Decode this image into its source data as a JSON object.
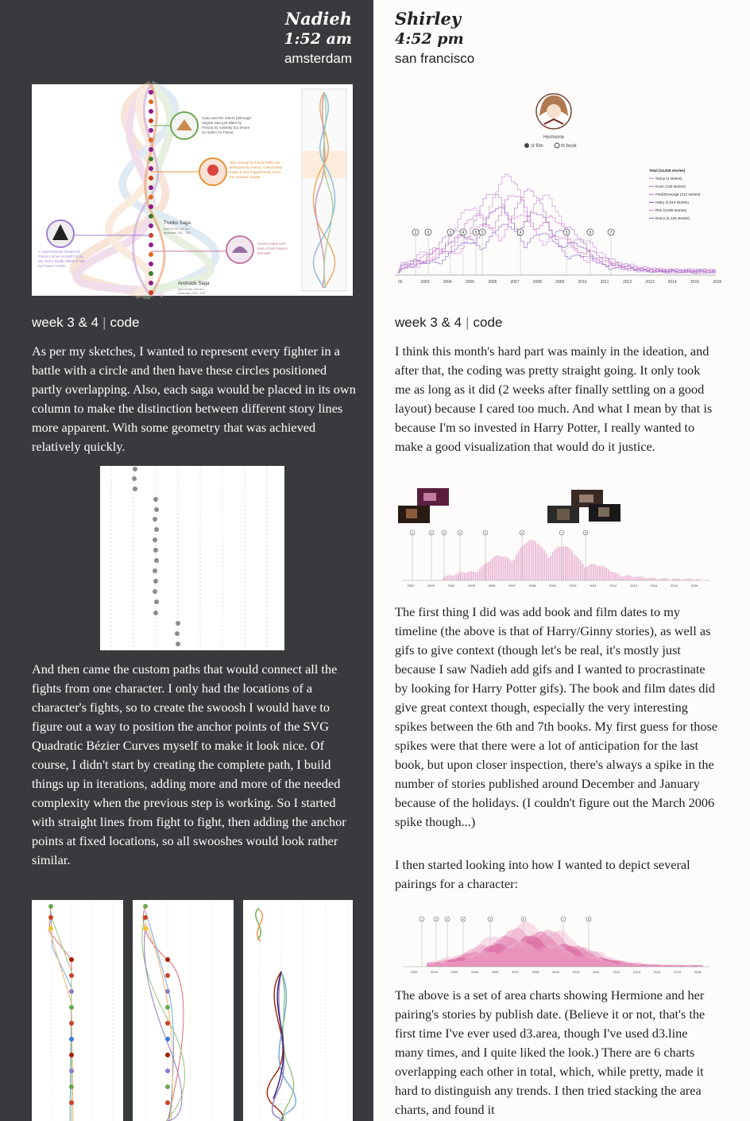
{
  "left": {
    "author": "Nadieh",
    "time": "1:52 am",
    "city": "amsterdam",
    "week_label": "week 3 & 4",
    "separator": "|",
    "code_label": "code",
    "figure1": {
      "annotation_goku": [
        "Goku and the others (although",
        "Vegeta was just killed by",
        "Frieza) try valiantly but theyre",
        "no match for Frieza"
      ],
      "annotation_trunks": [
        "After seeing his friend Krillin get",
        "destroyed by Frieza, Goku finally",
        "snaps & and magnificently turns",
        "into a Super Saiyan"
      ],
      "annotation_android": [
        "A cyberneticaly enhanced",
        "Frieza comes to Earth to try",
        "yet, but is swiftly killed in half",
        "by Future Trunks"
      ],
      "annotation_trunks2": [
        "Trunks steps with",
        "help of last Saiya's",
        "strength"
      ],
      "saga1_title": "Trunks Saga",
      "saga1_sub": [
        "part of the Cell arc",
        "episodes 118 - 125"
      ],
      "saga2_title": "Androids Saga",
      "saga2_sub": [
        "part of the Cell arc",
        "episodes 126 - 139"
      ]
    },
    "para1": "As per my sketches, I wanted to represent every fighter in a battle with a circle and then have these circles positioned partly overlapping. Also, each saga would be placed in its own column to make the distinction between different story lines more apparent. With some geometry that was achieved relatively quickly.",
    "para2": "And then came the custom paths that would connect all the fights from one character. I only had the locations of a character's fights, so to create the swoosh I would have to figure out a way to position the anchor points of the SVG Quadratic Bézier Curves myself to make it look nice. Of course, I didn't start by creating the complete path, I build things up in iterations, adding more and more of the needed complexity when the previous step is working. So I started with straight lines from fight to fight, then adding the anchor points at fixed locations, so all swooshes would look rather similar."
  },
  "right": {
    "author": "Shirley",
    "time": "4:52 pm",
    "city": "san francisco",
    "week_label": "week 3 & 4",
    "separator": "|",
    "code_label": "code",
    "figure1": {
      "character": "Hermione",
      "toggle_film": "st film",
      "toggle_book": "th book",
      "legend_title": "Total (14,025 stories)",
      "legend": [
        {
          "label": "Ginny (1 stories)",
          "color": "#c890d6"
        },
        {
          "label": "Krum (130 stories)",
          "color": "#b07fc9"
        },
        {
          "label": "Fred/GGeorge (312 stories)",
          "color": "#d46fd0"
        },
        {
          "label": "Harry (2,514 stories)",
          "color": "#9a5fc0"
        },
        {
          "label": "Ron (3,535 stories)",
          "color": "#e08ad6"
        },
        {
          "label": "Draco (2,133 stories)",
          "color": "#8e6fd0"
        }
      ],
      "markers": [
        "2",
        "3",
        "3",
        "4",
        "5",
        "3",
        "4",
        "5",
        "6",
        "7"
      ],
      "years": [
        "02",
        "2003",
        "2004",
        "2005",
        "2006",
        "2007",
        "2008",
        "2009",
        "2010",
        "2011",
        "2012",
        "2013",
        "2014",
        "2015",
        "2016"
      ]
    },
    "para1": "I think this month's hard part was mainly in the ideation, and after that, the coding was pretty straight going. It only took me as long as it did (2 weeks after finally settling on a good layout) because I cared too much. And what I mean by that is because I'm so invested in Harry Potter, I really wanted to make a good visualization that would do it justice.",
    "figure2": {
      "markers": [
        "1",
        "2",
        "3",
        "4",
        "5",
        "6",
        "7",
        "8"
      ],
      "years": [
        "2002",
        "2003",
        "2004",
        "2005",
        "2006",
        "2007",
        "2008",
        "2009",
        "2010",
        "2011",
        "2012",
        "2013",
        "2014",
        "2015",
        "2016"
      ]
    },
    "para2": "The first thing I did was add book and film dates to my timeline (the above is that of Harry/Ginny stories), as well as gifs to give context (though let's be real, it's mostly just because I saw Nadieh add gifs and I wanted to procrastinate by looking for Harry Potter gifs). The book and film dates did give great context though, especially the very interesting spikes between the 6th and 7th books. My first guess for those spikes were that there were a lot of anticipation for the last book, but upon closer inspection, there's always a spike in the number of stories published around December and January because of the holidays. (I couldn't figure out the March 2006 spike though...)",
    "para3": "I then started looking into how I wanted to depict several pairings for a character:",
    "figure3": {
      "markers": [
        "1",
        "2",
        "3",
        "4",
        "5",
        "6",
        "7",
        "8"
      ],
      "years": [
        "2002",
        "2003",
        "2004",
        "2005",
        "2006",
        "2007",
        "2008",
        "2009",
        "2010",
        "2011",
        "2012",
        "2013",
        "2014",
        "2015",
        "2016"
      ]
    },
    "para4": "The above is a set of area charts showing Hermione and her pairing's stories by publish date. (Believe it or not, that's the first time I've ever used d3.area, though I've used d3.line many times, and I quite liked the look.) There are 6 charts overlapping each other in total, which, while pretty, made it hard to distinguish any trends. I then tried stacking the area charts, and found it"
  }
}
